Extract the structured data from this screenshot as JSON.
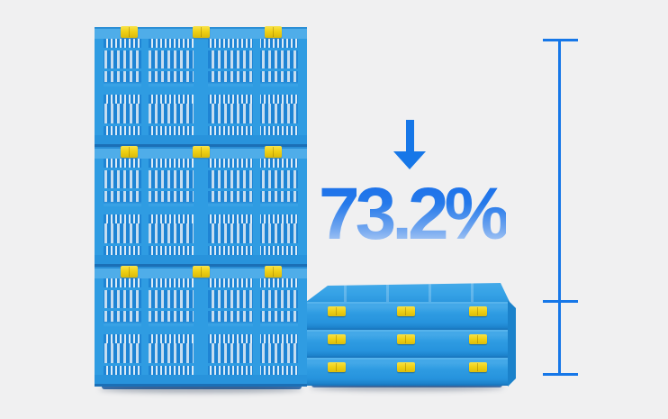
{
  "scene": {
    "background_color": "#f0f0f1"
  },
  "annotation": {
    "percentage": "73.2%",
    "arrow_icon": "arrow-down-icon",
    "accent_color": "#1677e8",
    "text_gradient_top": "#1a6fe9",
    "text_gradient_bottom": "#c9ddf8"
  },
  "unfolded_stack": {
    "crate_count": 3,
    "latches_per_crate": 3
  },
  "folded_stack": {
    "crate_count": 3,
    "clips_per_crate": 3
  },
  "measurement_ruler": {
    "color": "#1677e8",
    "tick_count": 3
  },
  "colors": {
    "crate_body": "#2f9ce2",
    "crate_rim": "#4fade9",
    "slat": "#1e84d4",
    "slat_gap": "#c6ddf0",
    "latch_yellow": "#f0d114",
    "folded_side": "#1b82cb"
  }
}
